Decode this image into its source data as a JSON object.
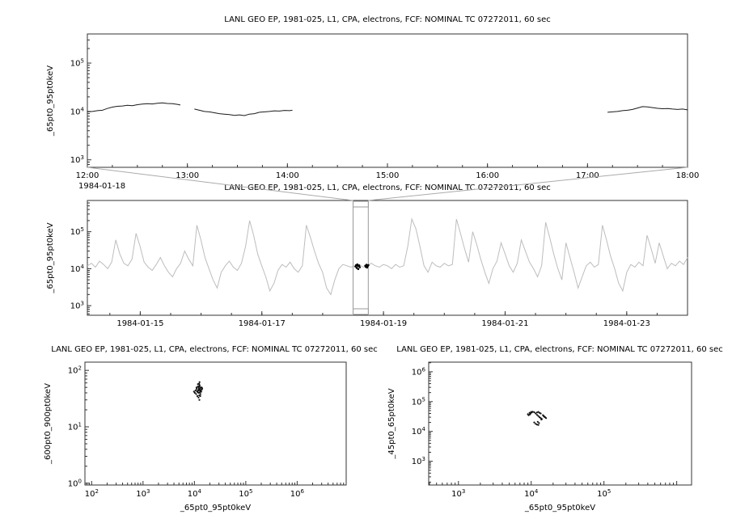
{
  "chart_data": [
    {
      "type": "line",
      "panel_name": "top-timeseries-panel",
      "title": "LANL GEO EP, 1981-025, L1, CPA, electrons, FCF: NOMINAL TC 07272011, 60 sec",
      "ylabel": "_65pt0_95pt0keV",
      "x_scale": "linear",
      "xlim": [
        12,
        18
      ],
      "x_minor_step": 0.25,
      "x_ticks": [
        {
          "v": 12,
          "label": "12:00"
        },
        {
          "v": 13,
          "label": "13:00"
        },
        {
          "v": 14,
          "label": "14:00"
        },
        {
          "v": 15,
          "label": "15:00"
        },
        {
          "v": 16,
          "label": "16:00"
        },
        {
          "v": 17,
          "label": "17:00"
        },
        {
          "v": 18,
          "label": "18:00"
        }
      ],
      "x_context_label": "1984-01-18",
      "ylim": [
        700,
        400000
      ],
      "y_tick_exponents": [
        3,
        4,
        5
      ],
      "series": [
        {
          "name": "_65pt0_95pt0keV",
          "color": "#1a1a1a",
          "segments": [
            [
              [
                12.0,
                9800
              ],
              [
                12.05,
                10000
              ],
              [
                12.1,
                10400
              ],
              [
                12.15,
                10600
              ],
              [
                12.2,
                11500
              ],
              [
                12.25,
                12300
              ],
              [
                12.3,
                12800
              ],
              [
                12.35,
                13000
              ],
              [
                12.4,
                13400
              ],
              [
                12.45,
                13200
              ],
              [
                12.5,
                13800
              ],
              [
                12.55,
                14200
              ],
              [
                12.6,
                14500
              ],
              [
                12.65,
                14300
              ],
              [
                12.7,
                14800
              ],
              [
                12.75,
                15000
              ],
              [
                12.8,
                14600
              ],
              [
                12.85,
                14500
              ],
              [
                12.9,
                14000
              ],
              [
                12.93,
                13600
              ]
            ],
            [
              [
                13.07,
                11200
              ],
              [
                13.12,
                10600
              ],
              [
                13.17,
                10000
              ],
              [
                13.22,
                9800
              ],
              [
                13.27,
                9400
              ],
              [
                13.32,
                9000
              ],
              [
                13.37,
                8800
              ],
              [
                13.42,
                8600
              ],
              [
                13.47,
                8300
              ],
              [
                13.52,
                8500
              ],
              [
                13.57,
                8200
              ],
              [
                13.62,
                8800
              ],
              [
                13.67,
                9000
              ],
              [
                13.72,
                9600
              ],
              [
                13.77,
                9800
              ],
              [
                13.82,
                10000
              ],
              [
                13.87,
                10300
              ],
              [
                13.92,
                10200
              ],
              [
                13.97,
                10500
              ],
              [
                14.02,
                10400
              ],
              [
                14.05,
                10600
              ]
            ],
            [
              [
                17.2,
                9600
              ],
              [
                17.25,
                9800
              ],
              [
                17.3,
                10000
              ],
              [
                17.35,
                10400
              ],
              [
                17.4,
                10600
              ],
              [
                17.45,
                11000
              ],
              [
                17.5,
                11800
              ],
              [
                17.55,
                12600
              ],
              [
                17.6,
                12400
              ],
              [
                17.65,
                12000
              ],
              [
                17.7,
                11600
              ],
              [
                17.75,
                11400
              ],
              [
                17.8,
                11500
              ],
              [
                17.85,
                11200
              ],
              [
                17.9,
                11000
              ],
              [
                17.95,
                11200
              ],
              [
                18.0,
                10800
              ]
            ]
          ]
        }
      ]
    },
    {
      "type": "line",
      "panel_name": "context-timeseries-panel",
      "title": "LANL GEO EP, 1981-025, L1, CPA, electrons, FCF: NOMINAL TC 07272011, 60 sec",
      "ylabel": "_65pt0_95pt0keV",
      "x_scale": "linear",
      "xlim": [
        14.13,
        24
      ],
      "x_minor_step": 0.5,
      "x_ticks": [
        {
          "v": 15,
          "label": "1984-01-15"
        },
        {
          "v": 17,
          "label": "1984-01-17"
        },
        {
          "v": 19,
          "label": "1984-01-19"
        },
        {
          "v": 21,
          "label": "1984-01-21"
        },
        {
          "v": 23,
          "label": "1984-01-23"
        }
      ],
      "ylim": [
        550,
        700000
      ],
      "y_tick_exponents": [
        3,
        4,
        5
      ],
      "series": [
        {
          "name": "_65pt0_95pt0keV",
          "color": "#bdbdbd",
          "x_start": 14.13,
          "x_step": 0.0667,
          "values": [
            12000,
            14000,
            11000,
            16000,
            13000,
            10000,
            15000,
            60000,
            25000,
            14000,
            12000,
            18000,
            90000,
            40000,
            15000,
            11000,
            9000,
            13000,
            20000,
            12000,
            8000,
            6000,
            10000,
            14000,
            30000,
            18000,
            12000,
            150000,
            60000,
            20000,
            10000,
            5000,
            3000,
            8000,
            12000,
            16000,
            11000,
            9000,
            14000,
            40000,
            200000,
            80000,
            25000,
            12000,
            6000,
            2500,
            4000,
            9000,
            13000,
            11000,
            15000,
            10000,
            8000,
            12000,
            150000,
            70000,
            30000,
            14000,
            8000,
            3000,
            2000,
            5000,
            10000,
            13000,
            12000,
            11000,
            12000,
            13000,
            11000,
            12000,
            14000,
            12000,
            11000,
            13000,
            12000,
            10000,
            13000,
            11000,
            12000,
            40000,
            220000,
            120000,
            40000,
            12000,
            8000,
            15000,
            12000,
            11000,
            14000,
            12000,
            13000,
            220000,
            90000,
            35000,
            15000,
            100000,
            45000,
            18000,
            8000,
            4000,
            10000,
            16000,
            50000,
            25000,
            12000,
            8000,
            14000,
            60000,
            30000,
            15000,
            10000,
            6000,
            12000,
            180000,
            70000,
            25000,
            10000,
            5000,
            50000,
            20000,
            8000,
            3000,
            6000,
            12000,
            15000,
            11000,
            13000,
            150000,
            60000,
            22000,
            10000,
            4000,
            2500,
            8000,
            13000,
            11000,
            15000,
            12000,
            80000,
            35000,
            14000,
            50000,
            22000,
            10000,
            14000,
            12000,
            16000,
            13000,
            20000
          ]
        }
      ],
      "highlight_color": "#000000",
      "highlight_points": [
        [
          18.54,
          11500
        ],
        [
          18.55,
          12500
        ],
        [
          18.56,
          10500
        ],
        [
          18.57,
          13000
        ],
        [
          18.58,
          11800
        ],
        [
          18.585,
          9800
        ],
        [
          18.6,
          12200
        ],
        [
          18.61,
          11000
        ],
        [
          18.7,
          12000
        ],
        [
          18.71,
          11200
        ],
        [
          18.72,
          12800
        ],
        [
          18.73,
          10800
        ],
        [
          18.74,
          11800
        ],
        [
          18.75,
          12400
        ]
      ],
      "selection": {
        "x0": 18.5,
        "x1": 18.75,
        "band_color": "#999999",
        "connector_color": "#aaaaaa"
      }
    },
    {
      "type": "scatter",
      "panel_name": "scatter-panel-left",
      "title": "LANL GEO EP, 1981-025, L1, CPA, electrons, FCF: NOMINAL TC 07272011, 60 sec",
      "xlabel": "_65pt0_95pt0keV",
      "ylabel": "_600pt0_900pt0keV",
      "x_scale": "log",
      "xlim": [
        74,
        9000000
      ],
      "x_tick_exponents": [
        2,
        3,
        4,
        5,
        6
      ],
      "ylim": [
        0.93,
        140
      ],
      "y_tick_exponents": [
        0,
        1,
        2
      ],
      "point_color": "#111111",
      "points": [
        [
          10500,
          44
        ],
        [
          11000,
          47
        ],
        [
          11500,
          42
        ],
        [
          12000,
          50
        ],
        [
          12500,
          46
        ],
        [
          13000,
          44
        ],
        [
          12200,
          40
        ],
        [
          11800,
          52
        ],
        [
          12800,
          48
        ],
        [
          13500,
          45
        ],
        [
          10800,
          38
        ],
        [
          11200,
          43
        ],
        [
          12600,
          55
        ],
        [
          13200,
          49
        ],
        [
          14000,
          46
        ],
        [
          12400,
          36
        ],
        [
          11600,
          41
        ],
        [
          12900,
          43
        ],
        [
          13800,
          50
        ],
        [
          10200,
          40
        ],
        [
          12100,
          47
        ],
        [
          12700,
          52
        ],
        [
          13100,
          38
        ],
        [
          11900,
          44
        ],
        [
          12300,
          58
        ],
        [
          13600,
          42
        ],
        [
          11400,
          35
        ],
        [
          12000,
          33
        ],
        [
          12500,
          30
        ],
        [
          13000,
          35
        ],
        [
          11000,
          50
        ],
        [
          14200,
          48
        ],
        [
          9800,
          42
        ],
        [
          12200,
          45
        ],
        [
          12800,
          41
        ],
        [
          12600,
          62
        ],
        [
          11700,
          57
        ]
      ]
    },
    {
      "type": "scatter",
      "panel_name": "scatter-panel-right",
      "title": "LANL GEO EP, 1981-025, L1, CPA, electrons, FCF: NOMINAL TC 07272011, 60 sec",
      "xlabel": "_65pt0_95pt0keV",
      "ylabel": "_45pt0_65pt0keV",
      "x_scale": "log",
      "xlim": [
        390,
        1600000
      ],
      "x_tick_exponents": [
        3,
        4,
        5
      ],
      "ylim": [
        160,
        2100000
      ],
      "y_tick_exponents": [
        3,
        4,
        5,
        6
      ],
      "point_color": "#111111",
      "points": [
        [
          9000,
          38000
        ],
        [
          9500,
          42000
        ],
        [
          10000,
          45000
        ],
        [
          10500,
          46000
        ],
        [
          11000,
          44000
        ],
        [
          11500,
          40000
        ],
        [
          12000,
          36000
        ],
        [
          12500,
          33000
        ],
        [
          13000,
          30000
        ],
        [
          13500,
          28000
        ],
        [
          14000,
          26000
        ],
        [
          12000,
          43000
        ],
        [
          12500,
          45000
        ],
        [
          13000,
          42000
        ],
        [
          13500,
          40000
        ],
        [
          14500,
          35000
        ],
        [
          15000,
          32000
        ],
        [
          15500,
          30000
        ],
        [
          16000,
          28000
        ],
        [
          11000,
          20000
        ],
        [
          11500,
          18000
        ],
        [
          12000,
          17000
        ],
        [
          12500,
          16500
        ],
        [
          9800,
          40000
        ],
        [
          10200,
          43000
        ],
        [
          14800,
          33000
        ],
        [
          15200,
          31000
        ],
        [
          13800,
          25000
        ],
        [
          12800,
          19000
        ],
        [
          12300,
          21000
        ],
        [
          9200,
          35000
        ],
        [
          9600,
          37000
        ]
      ]
    }
  ],
  "style": {
    "axis_color": "#333333",
    "background": "#ffffff"
  }
}
